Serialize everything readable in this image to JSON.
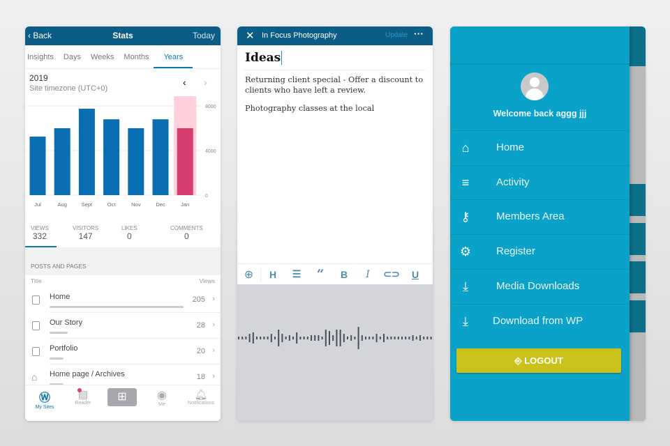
{
  "stats": {
    "back": "Back",
    "title": "Stats",
    "today": "Today",
    "tabs": [
      "Insights",
      "Days",
      "Weeks",
      "Months",
      "Years"
    ],
    "year": "2019",
    "timezone": "Site timezone (UTC+0)",
    "summary": [
      {
        "label": "VIEWS",
        "value": "332"
      },
      {
        "label": "VISITORS",
        "value": "147"
      },
      {
        "label": "LIKES",
        "value": "0"
      },
      {
        "label": "COMMENTS",
        "value": "0"
      }
    ],
    "section": "POSTS AND PAGES",
    "col_title": "Title",
    "col_views": "Views",
    "rows": [
      {
        "name": "Home",
        "views": "205",
        "icon": "page-icon"
      },
      {
        "name": "Our Story",
        "views": "28",
        "icon": "page-icon"
      },
      {
        "name": "Portfolio",
        "views": "20",
        "icon": "page-icon"
      },
      {
        "name": "Home page / Archives",
        "views": "18",
        "icon": "home-icon"
      }
    ],
    "tabbar": [
      "My Sites",
      "Reader",
      "",
      "Me",
      "Notifications"
    ],
    "colors": {
      "bar": "#0a6eb4",
      "highlight": "#d63e6f",
      "highlight_bg": "#ffcfdc",
      "header": "#0b5d85"
    }
  },
  "chart_data": {
    "type": "bar",
    "categories": [
      "Jul",
      "Aug",
      "Sept",
      "Oct",
      "Nov",
      "Dec",
      "Jan"
    ],
    "values": [
      5250,
      6000,
      7750,
      6800,
      6000,
      6800,
      6000
    ],
    "ylim": [
      0,
      8000
    ],
    "yticks": [
      "0",
      "4000",
      "8000"
    ],
    "highlighted": "Jan",
    "grid": true
  },
  "editor": {
    "site": "In Focus Photography",
    "update": "Update",
    "title": "Ideas",
    "para1": "Returning client special - Offer a discount to clients who have left a review.",
    "para2": "Photography classes at the local",
    "toolbar": [
      "H",
      "B",
      "I",
      "U"
    ]
  },
  "drawer": {
    "welcome": "Welcome back aggg jjj",
    "items": [
      {
        "label": "Home",
        "icon": "home-icon"
      },
      {
        "label": "Activity",
        "icon": "list-icon"
      },
      {
        "label": "Members Area",
        "icon": "key-icon"
      },
      {
        "label": "Register",
        "icon": "gear-icon"
      },
      {
        "label": "Media Downloads",
        "icon": "download-icon"
      },
      {
        "label": "Download from WP",
        "icon": "download-icon"
      }
    ],
    "logout": "LOGOUT",
    "colors": {
      "bg": "#0aa2c8",
      "logout": "#c8c21a"
    }
  }
}
